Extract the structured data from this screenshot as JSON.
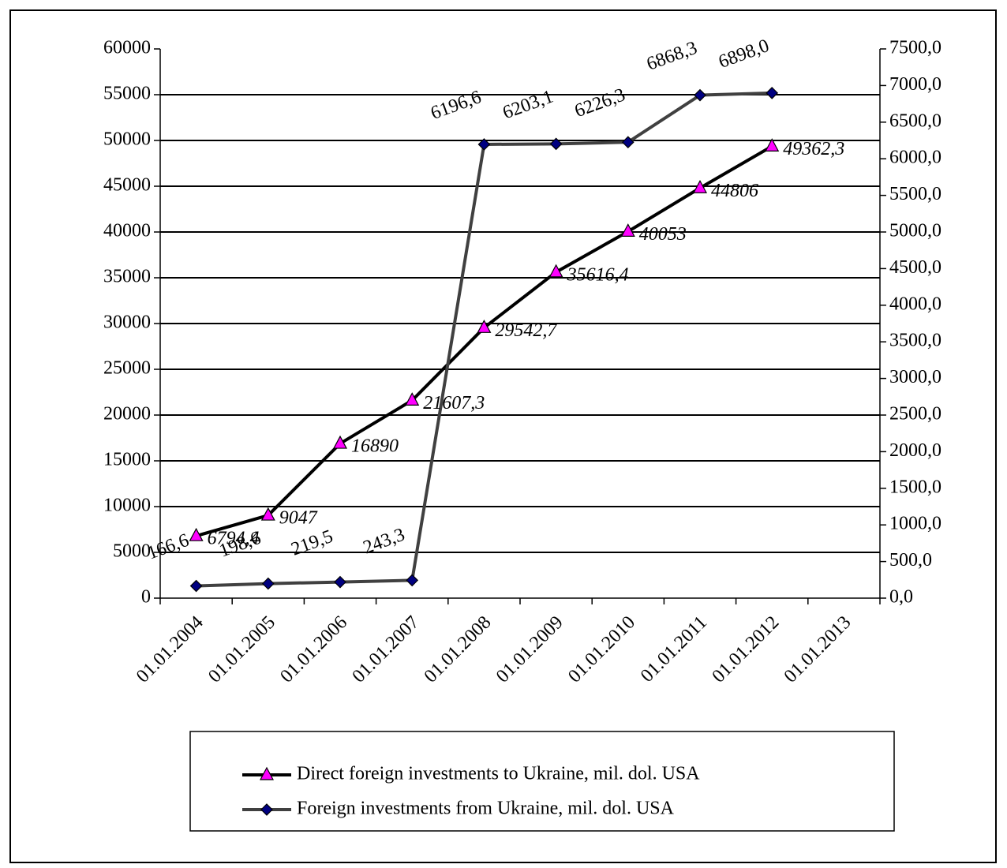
{
  "chart_data": {
    "type": "line",
    "categories": [
      "01.01.2004",
      "01.01.2005",
      "01.01.2006",
      "01.01.2007",
      "01.01.2008",
      "01.01.2009",
      "01.01.2010",
      "01.01.2011",
      "01.01.2012",
      "01.01.2013"
    ],
    "series": [
      {
        "name": "Direct foreign investments to Ukraine, mil. dol. USA",
        "color": "#000000",
        "marker_color": "#ff00ff",
        "marker": "triangle",
        "values": [
          6794.4,
          9047,
          16890,
          21607.3,
          29542.7,
          35616.4,
          40053,
          44806,
          49362.3,
          null
        ],
        "value_labels": [
          "6794,4",
          "9047",
          "16890",
          "21607,3",
          "29542,7",
          "35616,4",
          "40053",
          "44806",
          "49362,3",
          null
        ]
      },
      {
        "name": "Foreign investments from Ukraine, mil. dol. USA",
        "color": "#404040",
        "marker_color": "#000080",
        "marker": "diamond",
        "axis": "y2",
        "values": [
          166.6,
          198.6,
          219.5,
          243.3,
          6196.6,
          6203.1,
          6226.3,
          6868.3,
          6898.0,
          null
        ],
        "value_labels": [
          "166,6",
          "198,6",
          "219,5",
          "243,3",
          "6196,6",
          "6203,1",
          "6226,3",
          "6868,3",
          "6898,0",
          null
        ]
      }
    ],
    "ylim": [
      0,
      60000
    ],
    "yticks": [
      0,
      5000,
      10000,
      15000,
      20000,
      25000,
      30000,
      35000,
      40000,
      45000,
      50000,
      55000,
      60000
    ],
    "y2lim": [
      0,
      7500
    ],
    "y2ticks": [
      {
        "value": 0,
        "label": "0,0"
      },
      {
        "value": 500,
        "label": "500,0"
      },
      {
        "value": 1000,
        "label": "1000,0"
      },
      {
        "value": 1500,
        "label": "1500,0"
      },
      {
        "value": 2000,
        "label": "2000,0"
      },
      {
        "value": 2500,
        "label": "2500,0"
      },
      {
        "value": 3000,
        "label": "3000,0"
      },
      {
        "value": 3500,
        "label": "3500,0"
      },
      {
        "value": 4000,
        "label": "4000,0"
      },
      {
        "value": 4500,
        "label": "4500,0"
      },
      {
        "value": 5000,
        "label": "5000,0"
      },
      {
        "value": 5500,
        "label": "5500,0"
      },
      {
        "value": 6000,
        "label": "6000,0"
      },
      {
        "value": 6500,
        "label": "6500,0"
      },
      {
        "value": 7000,
        "label": "7000,0"
      },
      {
        "value": 7500,
        "label": "7500,0"
      }
    ],
    "grid": true,
    "legend": "bottom"
  }
}
